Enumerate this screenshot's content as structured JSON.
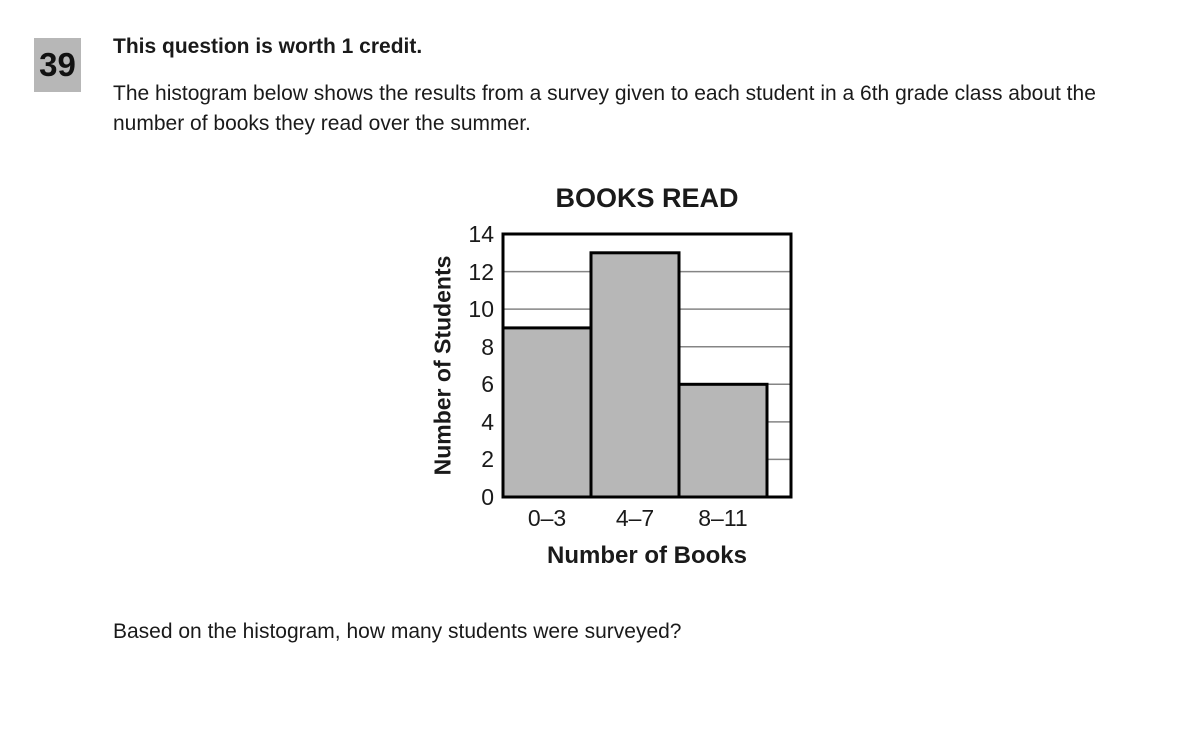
{
  "question": {
    "number": "39",
    "credit_note": "This question is worth 1 credit.",
    "intro": "The histogram below shows the results from a survey given to each student in a 6th grade class about the number of books they read over the summer.",
    "prompt": "Based on the histogram, how many students were surveyed?"
  },
  "chart_data": {
    "type": "bar",
    "title": "BOOKS READ",
    "categories": [
      "0–3",
      "4–7",
      "8–11"
    ],
    "values": [
      9,
      13,
      6
    ],
    "xlabel": "Number of Books",
    "ylabel": "Number of Students",
    "ylim": [
      0,
      14
    ],
    "yticks": [
      0,
      2,
      4,
      6,
      8,
      10,
      12,
      14
    ],
    "grid": "horizontal",
    "legend": "none",
    "bar_fill": "#b7b7b7",
    "bar_border": "#000000",
    "grid_color": "#858585",
    "plot_border_color": "#000000"
  },
  "colors": {
    "question_box_bg": "#b7b7b7",
    "text": "#1a1a1a",
    "background": "#ffffff"
  }
}
